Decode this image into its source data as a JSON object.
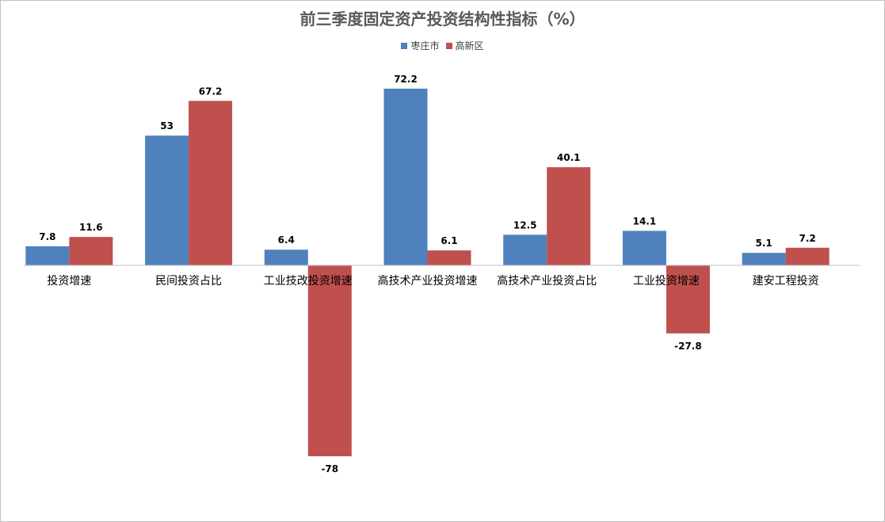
{
  "chart_data": {
    "type": "bar",
    "title": "前三季度固定资产投资结构性指标（%）",
    "categories": [
      "投资增速",
      "民间投资占比",
      "工业技改投资增速",
      "高技术产业投资增速",
      "高技术产业投资占比",
      "工业投资增速",
      "建安工程投资"
    ],
    "series": [
      {
        "name": "枣庄市",
        "color": "#4f81bd",
        "values": [
          7.8,
          53,
          6.4,
          72.2,
          12.5,
          14.1,
          5.1
        ]
      },
      {
        "name": "高新区",
        "color": "#c0504d",
        "values": [
          11.6,
          67.2,
          -78,
          6.1,
          40.1,
          -27.8,
          7.2
        ]
      }
    ],
    "ylim": [
      -80,
      80
    ],
    "grid": false,
    "legend": "top"
  }
}
